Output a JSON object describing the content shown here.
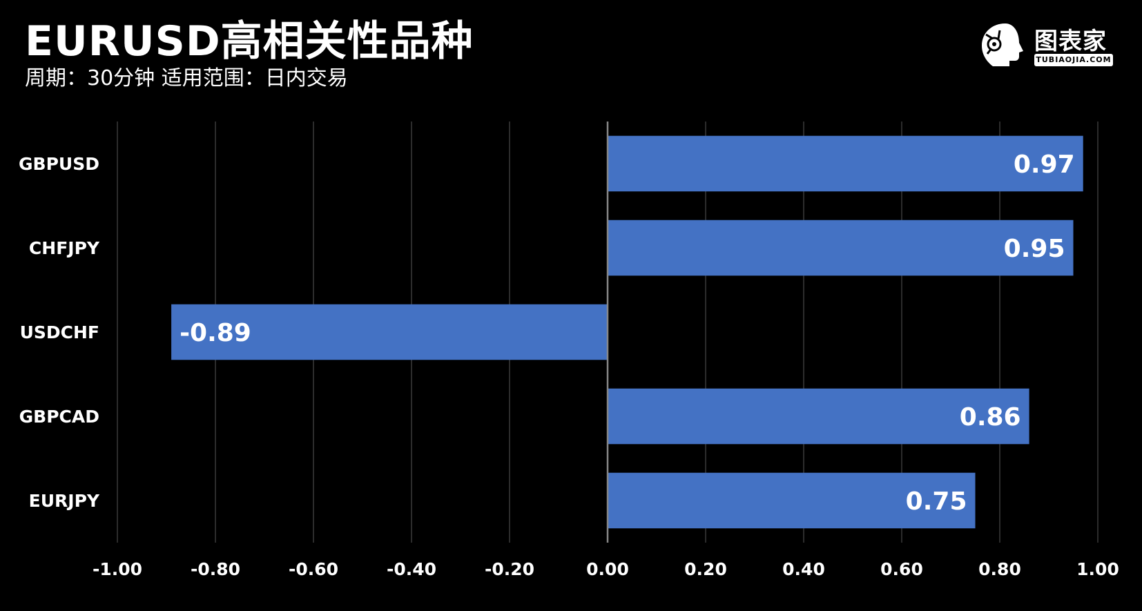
{
  "header": {
    "title": "EURUSD高相关性品种",
    "subtitle": "周期：30分钟  适用范围：日内交易"
  },
  "logo": {
    "name": "图表家",
    "sub": "TUBIAOJIA.COM"
  },
  "colors": {
    "background": "#000000",
    "bar": "#4472c4",
    "grid": "#3a3a3a",
    "axis": "#888888",
    "text": "#ffffff"
  },
  "chart_data": {
    "type": "bar",
    "orientation": "horizontal",
    "categories": [
      "GBPUSD",
      "CHFJPY",
      "USDCHF",
      "GBPCAD",
      "EURJPY"
    ],
    "values": [
      0.97,
      0.95,
      -0.89,
      0.86,
      0.75
    ],
    "value_labels": [
      "0.97",
      "0.95",
      "-0.89",
      "0.86",
      "0.75"
    ],
    "xlim": [
      -1.0,
      1.0
    ],
    "xticks": [
      -1.0,
      -0.8,
      -0.6,
      -0.4,
      -0.2,
      0.0,
      0.2,
      0.4,
      0.6,
      0.8,
      1.0
    ],
    "xtick_labels": [
      "-1.00",
      "-0.80",
      "-0.60",
      "-0.40",
      "-0.20",
      "0.00",
      "0.20",
      "0.40",
      "0.60",
      "0.80",
      "1.00"
    ],
    "grid": "vertical",
    "legend": "none"
  }
}
